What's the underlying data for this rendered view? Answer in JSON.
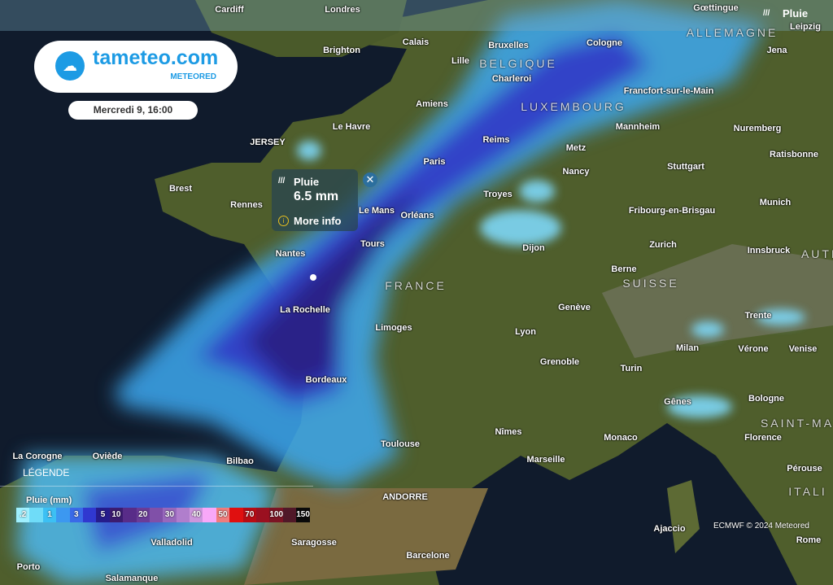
{
  "header": {
    "layer_label": "Pluie",
    "layer_icon": "rain-icon"
  },
  "logo": {
    "name": "tameteo.com",
    "sub": "METEORED"
  },
  "date": "Mercredi 9, 16:00",
  "popup": {
    "title": "Pluie",
    "value": "6.5 mm",
    "more_info": "More info"
  },
  "legend": {
    "title": "LÉGENDE",
    "unit": "Pluie (mm)",
    "cells": [
      {
        "label": ".2",
        "color": "#9ff0ff"
      },
      {
        "label": "",
        "color": "#6fdcf8"
      },
      {
        "label": "1",
        "color": "#3cc0f4"
      },
      {
        "label": "",
        "color": "#3c98f0"
      },
      {
        "label": "3",
        "color": "#3a6ae8"
      },
      {
        "label": "",
        "color": "#3038d0"
      },
      {
        "label": "5",
        "color": "#261c8c"
      },
      {
        "label": "10",
        "color": "#3c1c70"
      },
      {
        "label": "",
        "color": "#582c88"
      },
      {
        "label": "20",
        "color": "#6a3c98"
      },
      {
        "label": "",
        "color": "#8050a8"
      },
      {
        "label": "30",
        "color": "#9868bc"
      },
      {
        "label": "",
        "color": "#b07ecc"
      },
      {
        "label": "40",
        "color": "#cc96dc"
      },
      {
        "label": "",
        "color": "#f8a8f8"
      },
      {
        "label": "50",
        "color": "#f07c7c"
      },
      {
        "label": "",
        "color": "#e01010"
      },
      {
        "label": "70",
        "color": "#b80c14"
      },
      {
        "label": "",
        "color": "#9a1020"
      },
      {
        "label": "100",
        "color": "#7c1424"
      },
      {
        "label": "",
        "color": "#501828"
      },
      {
        "label": "150",
        "color": "#0a0a0a"
      }
    ]
  },
  "attribution": "ECMWF © 2024 Meteored",
  "regions": [
    "ALLEMAGNE",
    "BELGIQUE",
    "LUXEMBOURG",
    "FRANCE",
    "SUISSE",
    "AUTR",
    "SAINT-MARI",
    "ITALI"
  ],
  "cities": [
    "Cardiff",
    "Londres",
    "Gœttingue",
    "Leipzig",
    "Jena",
    "Brighton",
    "Calais",
    "Bruxelles",
    "Cologne",
    "Lille",
    "Charleroi",
    "Amiens",
    "Francfort-sur-le-Main",
    "Le Havre",
    "JERSEY",
    "Reims",
    "Metz",
    "Mannheim",
    "Nuremberg",
    "Ratisbonne",
    "Brest",
    "Rennes",
    "Paris",
    "Nancy",
    "Stuttgart",
    "Le Mans",
    "Orléans",
    "Troyes",
    "Fribourg-en-Brisgau",
    "Munich",
    "Nantes",
    "Tours",
    "Dijon",
    "Zurich",
    "Innsbruck",
    "Berne",
    "La Rochelle",
    "Genève",
    "Trente",
    "Limoges",
    "Lyon",
    "Milan",
    "Vérone",
    "Venise",
    "Grenoble",
    "Turin",
    "Bordeaux",
    "Gênes",
    "Bologne",
    "Nîmes",
    "Monaco",
    "Florence",
    "Toulouse",
    "Marseille",
    "Pérouse",
    "Oviède",
    "Bilbao",
    "La Corogne",
    "ANDORRE",
    "Ajaccio",
    "Rome",
    "Saragosse",
    "Valladolid",
    "Barcelone",
    "Porto",
    "Salamanque"
  ]
}
